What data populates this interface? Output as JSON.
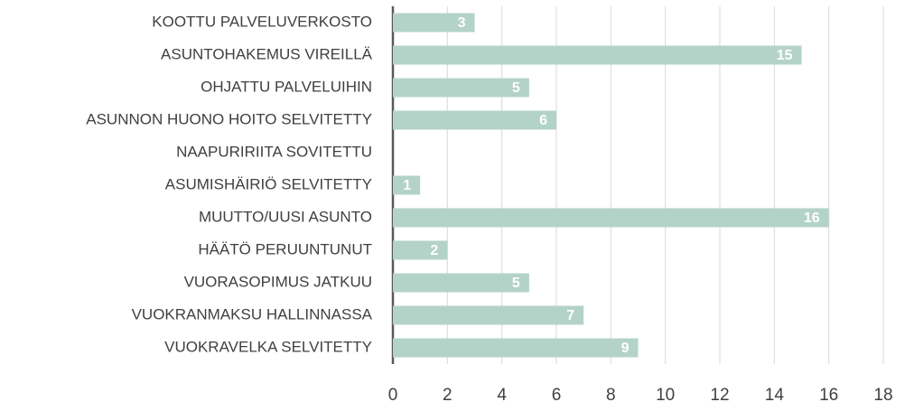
{
  "chart_data": {
    "type": "hbar",
    "categories": [
      "KOOTTU PALVELUVERKOSTO",
      "ASUNTOHAKEMUS VIREILLÄ",
      "OHJATTU PALVELUIHIN",
      "ASUNNON HUONO HOITO SELVITETTY",
      "NAAPURIRIITA SOVITETTU",
      "ASUMISHÄIRIÖ SELVITETTY",
      "MUUTTO/UUSI ASUNTO",
      "HÄÄTÖ PERUUNTUNUT",
      "VUORASOPIMUS JATKUU",
      "VUOKRANMAKSU HALLINNASSA",
      "VUOKRAVELKA SELVITETTY"
    ],
    "values": [
      3,
      15,
      5,
      6,
      null,
      1,
      16,
      2,
      5,
      7,
      9
    ],
    "color": "#b4d3c8",
    "xlim": [
      0,
      18
    ],
    "xticks": [
      0,
      2,
      4,
      6,
      8,
      10,
      12,
      14,
      16,
      18
    ],
    "grid": true
  }
}
